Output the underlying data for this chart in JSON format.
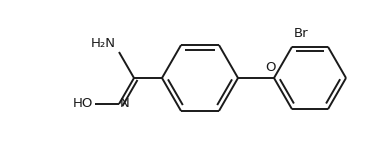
{
  "bg_color": "#ffffff",
  "line_color": "#1a1a1a",
  "line_width": 1.4,
  "font_size": 9.5,
  "figsize": [
    3.81,
    1.55
  ],
  "dpi": 100,
  "xlim": [
    0,
    381
  ],
  "ylim": [
    0,
    155
  ]
}
